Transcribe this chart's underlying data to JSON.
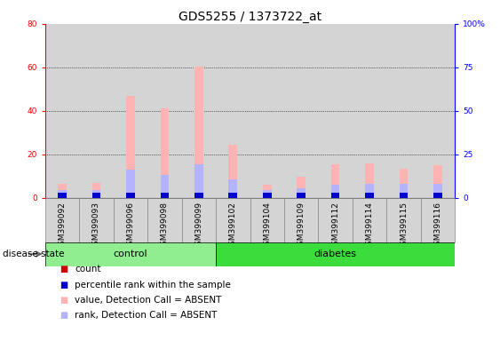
{
  "title": "GDS5255 / 1373722_at",
  "samples": [
    "GSM399092",
    "GSM399093",
    "GSM399096",
    "GSM399098",
    "GSM399099",
    "GSM399102",
    "GSM399104",
    "GSM399109",
    "GSM399112",
    "GSM399114",
    "GSM399115",
    "GSM399116"
  ],
  "n_control": 5,
  "n_diabetes": 7,
  "value_absent": [
    6.5,
    7.0,
    47.0,
    41.0,
    60.5,
    24.5,
    6.0,
    9.5,
    15.5,
    16.0,
    13.5,
    15.0
  ],
  "rank_absent_pct": [
    4.375,
    4.375,
    16.25,
    13.125,
    19.375,
    10.625,
    4.375,
    5.625,
    7.5,
    8.125,
    8.125,
    8.125
  ],
  "count_present": [
    2.0,
    2.0,
    2.0,
    2.0,
    2.0,
    2.0,
    2.0,
    2.0,
    2.0,
    2.0,
    2.0,
    2.0
  ],
  "percentile_present_pct": [
    3.125,
    3.125,
    3.125,
    3.125,
    3.125,
    3.125,
    3.125,
    3.125,
    3.125,
    3.125,
    3.125,
    3.125
  ],
  "ylim_left": [
    0,
    80
  ],
  "ylim_right": [
    0,
    100
  ],
  "yticks_left": [
    0,
    20,
    40,
    60,
    80
  ],
  "yticks_right": [
    0,
    25,
    50,
    75,
    100
  ],
  "ytick_labels_right": [
    "0",
    "25",
    "50",
    "75",
    "100%"
  ],
  "color_value_absent": "#ffb3b3",
  "color_rank_absent": "#b3b3ff",
  "color_count": "#cc0000",
  "color_percentile": "#0000cc",
  "color_col_bg_control": "#d0d0d0",
  "color_col_bg_diabetes": "#d8d8d8",
  "color_bg_control": "#90EE90",
  "color_bg_diabetes": "#3ddc3d",
  "title_fontsize": 10,
  "tick_fontsize": 6.5,
  "label_fontsize": 8,
  "legend_fontsize": 7.5,
  "bar_width": 0.25,
  "gridline_ticks": [
    20,
    40,
    60
  ]
}
